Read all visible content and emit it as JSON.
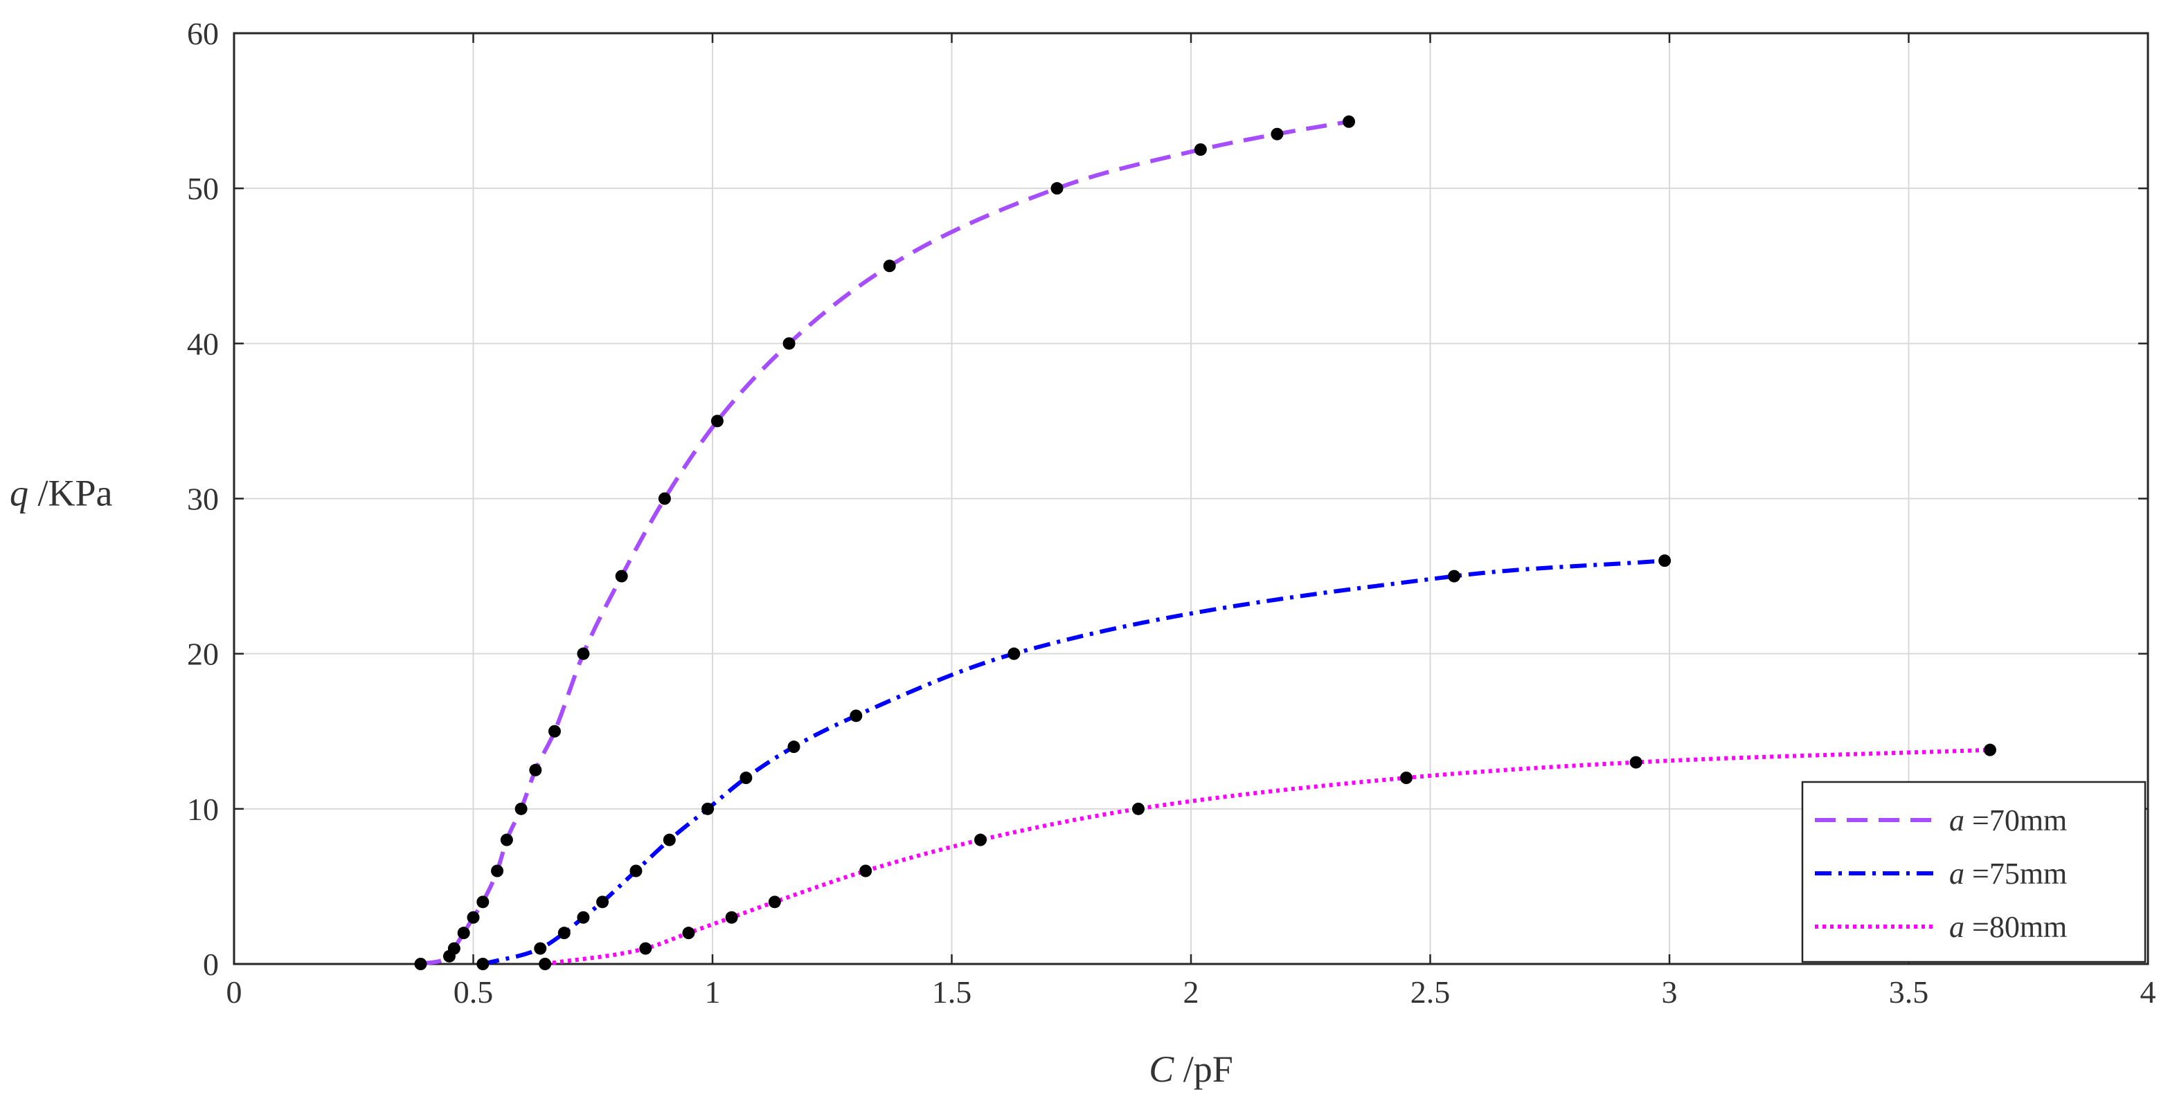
{
  "chart_data": {
    "type": "line",
    "xlabel": {
      "var": "C",
      "unit": " /pF"
    },
    "ylabel": {
      "var": "q",
      "unit": " /KPa"
    },
    "xlim": [
      0,
      4
    ],
    "ylim": [
      0,
      60
    ],
    "xticks": [
      0,
      0.5,
      1,
      1.5,
      2,
      2.5,
      3,
      3.5,
      4
    ],
    "xtick_labels": [
      "0",
      "0.5",
      "1",
      "1.5",
      "2",
      "2.5",
      "3",
      "3.5",
      "4"
    ],
    "yticks": [
      0,
      10,
      20,
      30,
      40,
      50,
      60
    ],
    "ytick_labels": [
      "0",
      "10",
      "20",
      "30",
      "40",
      "50",
      "60"
    ],
    "grid": true,
    "legend_position": "bottom-right",
    "series": [
      {
        "name": {
          "var": "a",
          "text": " =70mm"
        },
        "color": "#a64dff",
        "style": "dashed",
        "points": [
          [
            0.39,
            0
          ],
          [
            0.45,
            0.5
          ],
          [
            0.46,
            1
          ],
          [
            0.48,
            2
          ],
          [
            0.5,
            3
          ],
          [
            0.52,
            4
          ],
          [
            0.55,
            6
          ],
          [
            0.57,
            8
          ],
          [
            0.6,
            10
          ],
          [
            0.63,
            12.5
          ],
          [
            0.67,
            15
          ],
          [
            0.73,
            20
          ],
          [
            0.81,
            25
          ],
          [
            0.9,
            30
          ],
          [
            1.01,
            35
          ],
          [
            1.16,
            40
          ],
          [
            1.37,
            45
          ],
          [
            1.72,
            50
          ],
          [
            2.02,
            52.5
          ],
          [
            2.18,
            53.5
          ],
          [
            2.33,
            54.3
          ]
        ]
      },
      {
        "name": {
          "var": "a",
          "text": " =75mm"
        },
        "color": "#0000ff",
        "style": "dashdot",
        "points": [
          [
            0.52,
            0
          ],
          [
            0.64,
            1
          ],
          [
            0.69,
            2
          ],
          [
            0.73,
            3
          ],
          [
            0.77,
            4
          ],
          [
            0.84,
            6
          ],
          [
            0.91,
            8
          ],
          [
            0.99,
            10
          ],
          [
            1.07,
            12
          ],
          [
            1.17,
            14
          ],
          [
            1.3,
            16
          ],
          [
            1.63,
            20
          ],
          [
            2.55,
            25
          ],
          [
            2.99,
            26
          ]
        ]
      },
      {
        "name": {
          "var": "a",
          "text": " =80mm"
        },
        "color": "#ff00ff",
        "style": "dotted",
        "points": [
          [
            0.65,
            0
          ],
          [
            0.86,
            1
          ],
          [
            0.95,
            2
          ],
          [
            1.04,
            3
          ],
          [
            1.13,
            4
          ],
          [
            1.32,
            6
          ],
          [
            1.56,
            8
          ],
          [
            1.89,
            10
          ],
          [
            2.45,
            12
          ],
          [
            2.93,
            13
          ],
          [
            3.67,
            13.8
          ]
        ]
      }
    ]
  }
}
